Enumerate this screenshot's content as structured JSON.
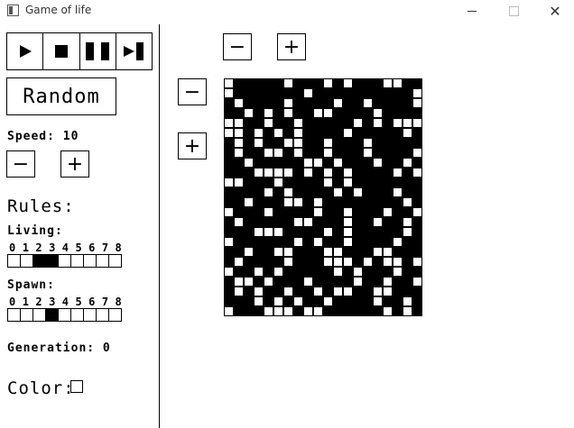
{
  "window": {
    "title": "Game of life",
    "close_glyph": "✕"
  },
  "controls": {
    "play_icon": "play-icon",
    "stop_icon": "stop-icon",
    "pause_icon": "pause-icon",
    "step_icon": "step-icon"
  },
  "random_label": "Random",
  "speed": {
    "label": "Speed: 10",
    "minus": "−",
    "plus": "+"
  },
  "zoom": {
    "minus": "−",
    "plus": "+"
  },
  "rules": {
    "title": "Rules:",
    "living": {
      "label": "Living:",
      "digits": [
        "0",
        "1",
        "2",
        "3",
        "4",
        "5",
        "6",
        "7",
        "8"
      ],
      "active": [
        2,
        3
      ]
    },
    "spawn": {
      "label": "Spawn:",
      "digits": [
        "0",
        "1",
        "2",
        "3",
        "4",
        "5",
        "6",
        "7",
        "8"
      ],
      "active": [
        3
      ]
    }
  },
  "generation": {
    "label": "Generation: 0"
  },
  "color": {
    "label": "Color:",
    "value": "#ffffff"
  },
  "grid": {
    "cols": 20,
    "rows": 24,
    "cells": [
      "01111101110101110011",
      "01111111011111111110",
      "10111101111011011110",
      "11010101100111101111",
      "00110110111110101000",
      "00101010111101111101",
      "10101100110111011111",
      "10110010110111011110",
      "11011111001011101101",
      "11100001010101111010",
      "00111011110101111111",
      "11110101111010111011",
      "11011100101111111101",
      "01110111101101110110",
      "10111110011101101101",
      "11100011110101111101",
      "01111110101101111011",
      "11011001110011100111",
      "10111101110001010010",
      "01101011111010111011",
      "10010111011110110110",
      "10101101101001100111",
      "11101010110111101101",
      "01110001001111110101"
    ]
  }
}
